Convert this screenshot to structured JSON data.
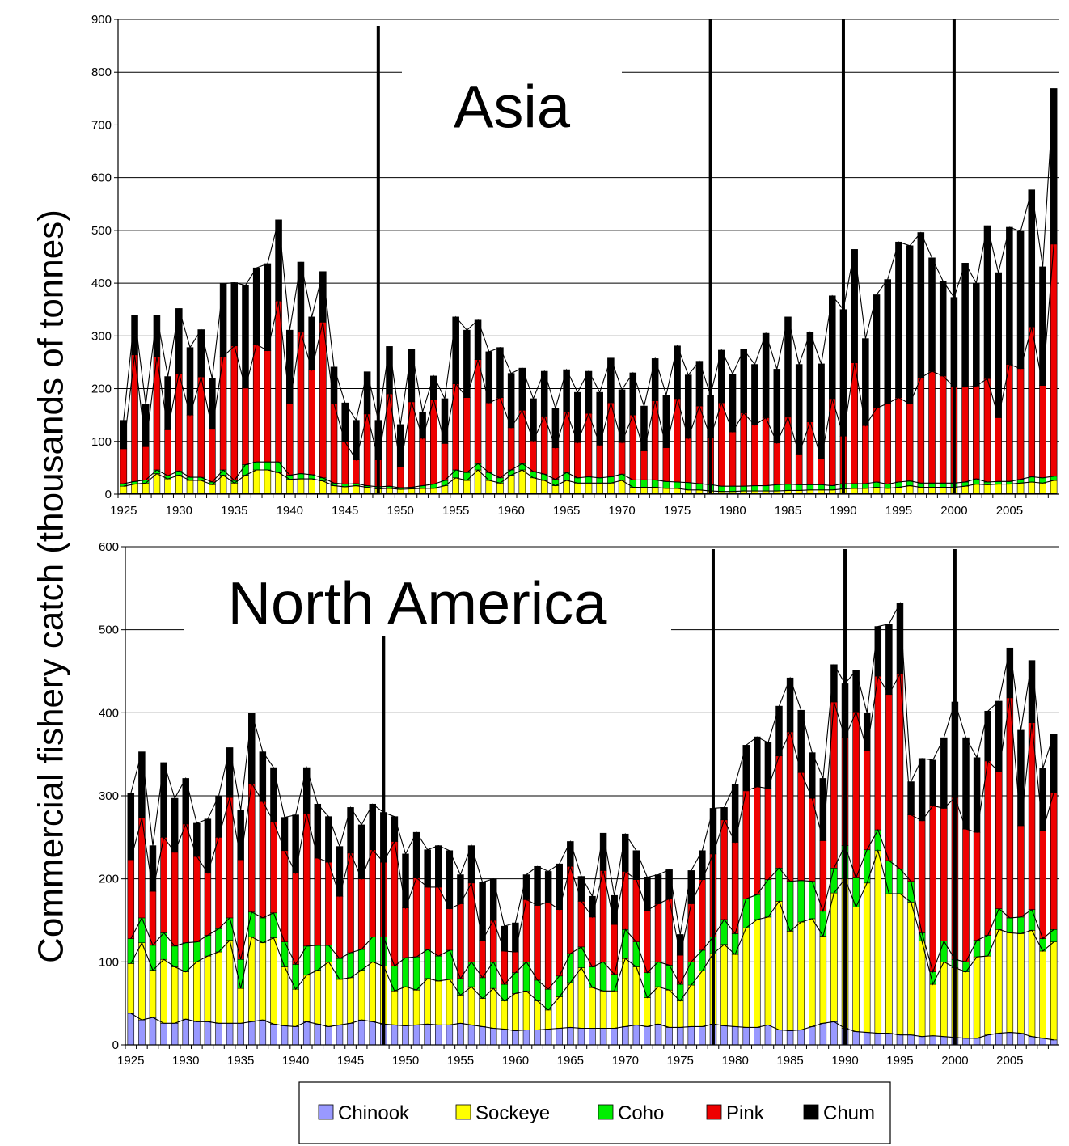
{
  "figure": {
    "ylabel": "Commercial fishery catch  (thousands of tonnes)",
    "legend": [
      {
        "name": "Chinook",
        "color": "#9999ff"
      },
      {
        "name": "Sockeye",
        "color": "#ffff00"
      },
      {
        "name": "Coho",
        "color": "#00ee00"
      },
      {
        "name": "Pink",
        "color": "#ee0000"
      },
      {
        "name": "Chum",
        "color": "#000000"
      }
    ],
    "legend_placement": "bottom-center"
  },
  "chart_data": [
    {
      "type": "bar",
      "stacked": true,
      "title": "Asia",
      "xlabel": "",
      "ylabel": "Commercial fishery catch  (thousands of tonnes)",
      "ylim": [
        0,
        900
      ],
      "yticks": [
        0,
        100,
        200,
        300,
        400,
        500,
        600,
        700,
        800,
        900
      ],
      "xtick_labels": [
        "1925",
        "1930",
        "1935",
        "1940",
        "1945",
        "1950",
        "1955",
        "1960",
        "1965",
        "1970",
        "1975",
        "1980",
        "1985",
        "1990",
        "1995",
        "2000",
        "2005"
      ],
      "grid": true,
      "regime_shift_years": [
        1948,
        1978,
        1990,
        2000
      ],
      "categories": [
        1925,
        1926,
        1927,
        1928,
        1929,
        1930,
        1931,
        1932,
        1933,
        1934,
        1935,
        1936,
        1937,
        1938,
        1939,
        1940,
        1941,
        1942,
        1943,
        1944,
        1945,
        1946,
        1947,
        1948,
        1949,
        1950,
        1951,
        1952,
        1953,
        1954,
        1955,
        1956,
        1957,
        1958,
        1959,
        1960,
        1961,
        1962,
        1963,
        1964,
        1965,
        1966,
        1967,
        1968,
        1969,
        1970,
        1971,
        1972,
        1973,
        1974,
        1975,
        1976,
        1977,
        1978,
        1979,
        1980,
        1981,
        1982,
        1983,
        1984,
        1985,
        1986,
        1987,
        1988,
        1989,
        1990,
        1991,
        1992,
        1993,
        1994,
        1995,
        1996,
        1997,
        1998,
        1999,
        2000,
        2001,
        2002,
        2003,
        2004,
        2005,
        2006,
        2007,
        2008,
        2009
      ],
      "series": [
        {
          "name": "Chinook",
          "color": "#9999ff",
          "values": [
            1,
            1,
            1,
            1,
            1,
            1,
            1,
            1,
            1,
            1,
            1,
            1,
            1,
            1,
            1,
            1,
            1,
            1,
            1,
            1,
            1,
            1,
            1,
            1,
            1,
            1,
            1,
            1,
            1,
            1,
            1,
            1,
            1,
            1,
            1,
            1,
            1,
            1,
            1,
            1,
            1,
            1,
            1,
            1,
            1,
            1,
            1,
            1,
            1,
            1,
            1,
            1,
            1,
            1,
            1,
            1,
            1,
            1,
            1,
            1,
            1,
            1,
            1,
            1,
            1,
            1,
            1,
            1,
            1,
            1,
            1,
            1,
            1,
            1,
            1,
            1,
            1,
            1,
            1,
            1,
            1,
            1,
            1,
            1,
            1
          ]
        },
        {
          "name": "Sockeye",
          "color": "#ffff00",
          "values": [
            14,
            18,
            20,
            38,
            28,
            35,
            25,
            25,
            17,
            35,
            20,
            35,
            45,
            45,
            40,
            27,
            28,
            28,
            24,
            15,
            13,
            15,
            12,
            9,
            10,
            8,
            9,
            10,
            10,
            15,
            30,
            25,
            45,
            25,
            20,
            35,
            45,
            30,
            25,
            15,
            25,
            20,
            20,
            20,
            20,
            25,
            12,
            12,
            12,
            10,
            10,
            7,
            7,
            5,
            4,
            4,
            5,
            5,
            5,
            5,
            6,
            6,
            7,
            7,
            7,
            9,
            10,
            10,
            12,
            10,
            12,
            15,
            12,
            12,
            12,
            12,
            14,
            18,
            17,
            18,
            18,
            20,
            22,
            20,
            25
          ]
        },
        {
          "name": "Coho",
          "color": "#00ee00",
          "values": [
            5,
            5,
            6,
            7,
            6,
            8,
            6,
            6,
            5,
            10,
            5,
            20,
            15,
            15,
            20,
            8,
            10,
            8,
            6,
            5,
            5,
            4,
            3,
            4,
            4,
            3,
            3,
            5,
            8,
            10,
            15,
            15,
            12,
            15,
            10,
            10,
            12,
            12,
            12,
            12,
            15,
            10,
            12,
            10,
            12,
            12,
            14,
            14,
            14,
            13,
            12,
            14,
            12,
            12,
            10,
            10,
            9,
            10,
            10,
            12,
            12,
            11,
            10,
            10,
            8,
            10,
            9,
            9,
            10,
            8,
            10,
            9,
            8,
            8,
            8,
            8,
            8,
            10,
            5,
            5,
            5,
            7,
            10,
            10,
            8
          ]
        },
        {
          "name": "Pink",
          "color": "#ee0000",
          "values": [
            66,
            240,
            63,
            215,
            87,
            185,
            118,
            190,
            100,
            215,
            255,
            145,
            223,
            211,
            305,
            135,
            268,
            199,
            295,
            150,
            80,
            45,
            136,
            51,
            175,
            40,
            162,
            90,
            160,
            70,
            163,
            142,
            197,
            132,
            152,
            80,
            101,
            58,
            110,
            60,
            115,
            67,
            120,
            62,
            140,
            60,
            123,
            55,
            150,
            64,
            158,
            84,
            147,
            90,
            158,
            103,
            139,
            115,
            129,
            79,
            127,
            58,
            119,
            49,
            165,
            90,
            229,
            110,
            140,
            153,
            160,
            146,
            200,
            212,
            203,
            182,
            180,
            176,
            196,
            121,
            222,
            210,
            284,
            175,
            440
          ]
        },
        {
          "name": "Chum",
          "color": "#000000",
          "values": [
            54,
            75,
            80,
            78,
            101,
            123,
            128,
            90,
            96,
            138,
            120,
            195,
            145,
            165,
            154,
            140,
            133,
            100,
            96,
            70,
            74,
            75,
            80,
            75,
            90,
            80,
            100,
            50,
            45,
            85,
            127,
            128,
            75,
            97,
            95,
            103,
            80,
            80,
            85,
            75,
            80,
            95,
            80,
            100,
            85,
            100,
            80,
            85,
            80,
            100,
            100,
            120,
            85,
            80,
            100,
            110,
            120,
            115,
            160,
            140,
            190,
            170,
            170,
            180,
            195,
            240,
            215,
            165,
            215,
            235,
            295,
            300,
            275,
            215,
            180,
            170,
            235,
            195,
            290,
            275,
            260,
            260,
            260,
            225,
            295
          ]
        }
      ]
    },
    {
      "type": "bar",
      "stacked": true,
      "title": "North America",
      "xlabel": "",
      "ylabel": "Commercial fishery catch  (thousands of tonnes)",
      "ylim": [
        0,
        600
      ],
      "yticks": [
        0,
        100,
        200,
        300,
        400,
        500,
        600
      ],
      "xtick_labels": [
        "1925",
        "1930",
        "1935",
        "1940",
        "1945",
        "1950",
        "1955",
        "1960",
        "1965",
        "1970",
        "1975",
        "1980",
        "1985",
        "1990",
        "1995",
        "2000",
        "2005"
      ],
      "grid": true,
      "regime_shift_years": [
        1948,
        1978,
        1990,
        2000
      ],
      "categories": [
        1925,
        1926,
        1927,
        1928,
        1929,
        1930,
        1931,
        1932,
        1933,
        1934,
        1935,
        1936,
        1937,
        1938,
        1939,
        1940,
        1941,
        1942,
        1943,
        1944,
        1945,
        1946,
        1947,
        1948,
        1949,
        1950,
        1951,
        1952,
        1953,
        1954,
        1955,
        1956,
        1957,
        1958,
        1959,
        1960,
        1961,
        1962,
        1963,
        1964,
        1965,
        1966,
        1967,
        1968,
        1969,
        1970,
        1971,
        1972,
        1973,
        1974,
        1975,
        1976,
        1977,
        1978,
        1979,
        1980,
        1981,
        1982,
        1983,
        1984,
        1985,
        1986,
        1987,
        1988,
        1989,
        1990,
        1991,
        1992,
        1993,
        1994,
        1995,
        1996,
        1997,
        1998,
        1999,
        2000,
        2001,
        2002,
        2003,
        2004,
        2005,
        2006,
        2007,
        2008,
        2009
      ],
      "series": [
        {
          "name": "Chinook",
          "color": "#9999ff",
          "values": [
            38,
            30,
            33,
            26,
            26,
            31,
            28,
            28,
            26,
            26,
            26,
            28,
            30,
            25,
            23,
            22,
            28,
            25,
            22,
            24,
            26,
            30,
            28,
            25,
            24,
            23,
            24,
            25,
            24,
            24,
            26,
            24,
            22,
            20,
            19,
            17,
            18,
            18,
            19,
            20,
            21,
            20,
            20,
            20,
            20,
            22,
            24,
            22,
            25,
            21,
            21,
            22,
            22,
            25,
            23,
            22,
            21,
            21,
            24,
            18,
            17,
            18,
            22,
            26,
            28,
            20,
            16,
            15,
            14,
            14,
            12,
            12,
            10,
            11,
            10,
            9,
            8,
            8,
            12,
            14,
            15,
            14,
            10,
            8,
            6
          ]
        },
        {
          "name": "Sockeye",
          "color": "#ffff00",
          "values": [
            60,
            93,
            57,
            77,
            68,
            57,
            72,
            79,
            86,
            100,
            42,
            102,
            93,
            104,
            71,
            45,
            56,
            65,
            78,
            55,
            55,
            60,
            72,
            70,
            41,
            47,
            42,
            55,
            53,
            55,
            34,
            46,
            34,
            48,
            34,
            45,
            47,
            35,
            23,
            38,
            54,
            73,
            49,
            45,
            45,
            82,
            70,
            35,
            45,
            45,
            32,
            50,
            67,
            85,
            98,
            87,
            120,
            130,
            130,
            155,
            120,
            130,
            130,
            105,
            155,
            180,
            150,
            180,
            220,
            168,
            170,
            160,
            115,
            62,
            90,
            84,
            80,
            98,
            95,
            125,
            120,
            120,
            128,
            105,
            118
          ]
        },
        {
          "name": "Coho",
          "color": "#00ee00",
          "values": [
            30,
            30,
            30,
            32,
            25,
            35,
            24,
            25,
            28,
            27,
            35,
            30,
            30,
            30,
            30,
            30,
            35,
            30,
            20,
            25,
            30,
            25,
            30,
            35,
            30,
            35,
            40,
            35,
            30,
            35,
            20,
            30,
            25,
            32,
            20,
            25,
            35,
            25,
            25,
            25,
            35,
            25,
            25,
            35,
            20,
            35,
            30,
            30,
            30,
            30,
            20,
            28,
            25,
            20,
            30,
            25,
            35,
            30,
            45,
            40,
            60,
            50,
            45,
            30,
            30,
            40,
            35,
            40,
            25,
            40,
            30,
            25,
            10,
            15,
            25,
            10,
            12,
            20,
            25,
            25,
            18,
            20,
            25,
            15,
            15
          ]
        },
        {
          "name": "Pink",
          "color": "#ee0000",
          "values": [
            95,
            120,
            65,
            115,
            113,
            143,
            103,
            75,
            110,
            145,
            120,
            155,
            140,
            110,
            110,
            110,
            160,
            105,
            100,
            75,
            120,
            85,
            105,
            90,
            150,
            60,
            95,
            75,
            83,
            50,
            90,
            95,
            45,
            50,
            40,
            25,
            75,
            90,
            105,
            80,
            105,
            55,
            60,
            110,
            60,
            70,
            75,
            75,
            70,
            80,
            35,
            70,
            85,
            100,
            120,
            110,
            130,
            130,
            110,
            135,
            180,
            130,
            100,
            85,
            200,
            130,
            200,
            120,
            185,
            200,
            235,
            80,
            135,
            200,
            160,
            195,
            160,
            130,
            210,
            165,
            265,
            110,
            225,
            130,
            165
          ]
        },
        {
          "name": "Chum",
          "color": "#000000",
          "values": [
            80,
            80,
            55,
            90,
            65,
            55,
            40,
            65,
            50,
            60,
            60,
            85,
            60,
            65,
            40,
            70,
            55,
            65,
            55,
            60,
            55,
            65,
            55,
            60,
            30,
            65,
            55,
            45,
            50,
            70,
            35,
            45,
            70,
            50,
            30,
            35,
            30,
            47,
            37,
            55,
            30,
            30,
            25,
            45,
            35,
            45,
            35,
            40,
            35,
            35,
            25,
            40,
            35,
            55,
            15,
            70,
            55,
            60,
            55,
            60,
            65,
            75,
            55,
            75,
            45,
            65,
            50,
            45,
            60,
            85,
            85,
            40,
            75,
            55,
            85,
            115,
            110,
            90,
            60,
            85,
            60,
            115,
            75,
            75,
            70
          ]
        }
      ]
    }
  ]
}
